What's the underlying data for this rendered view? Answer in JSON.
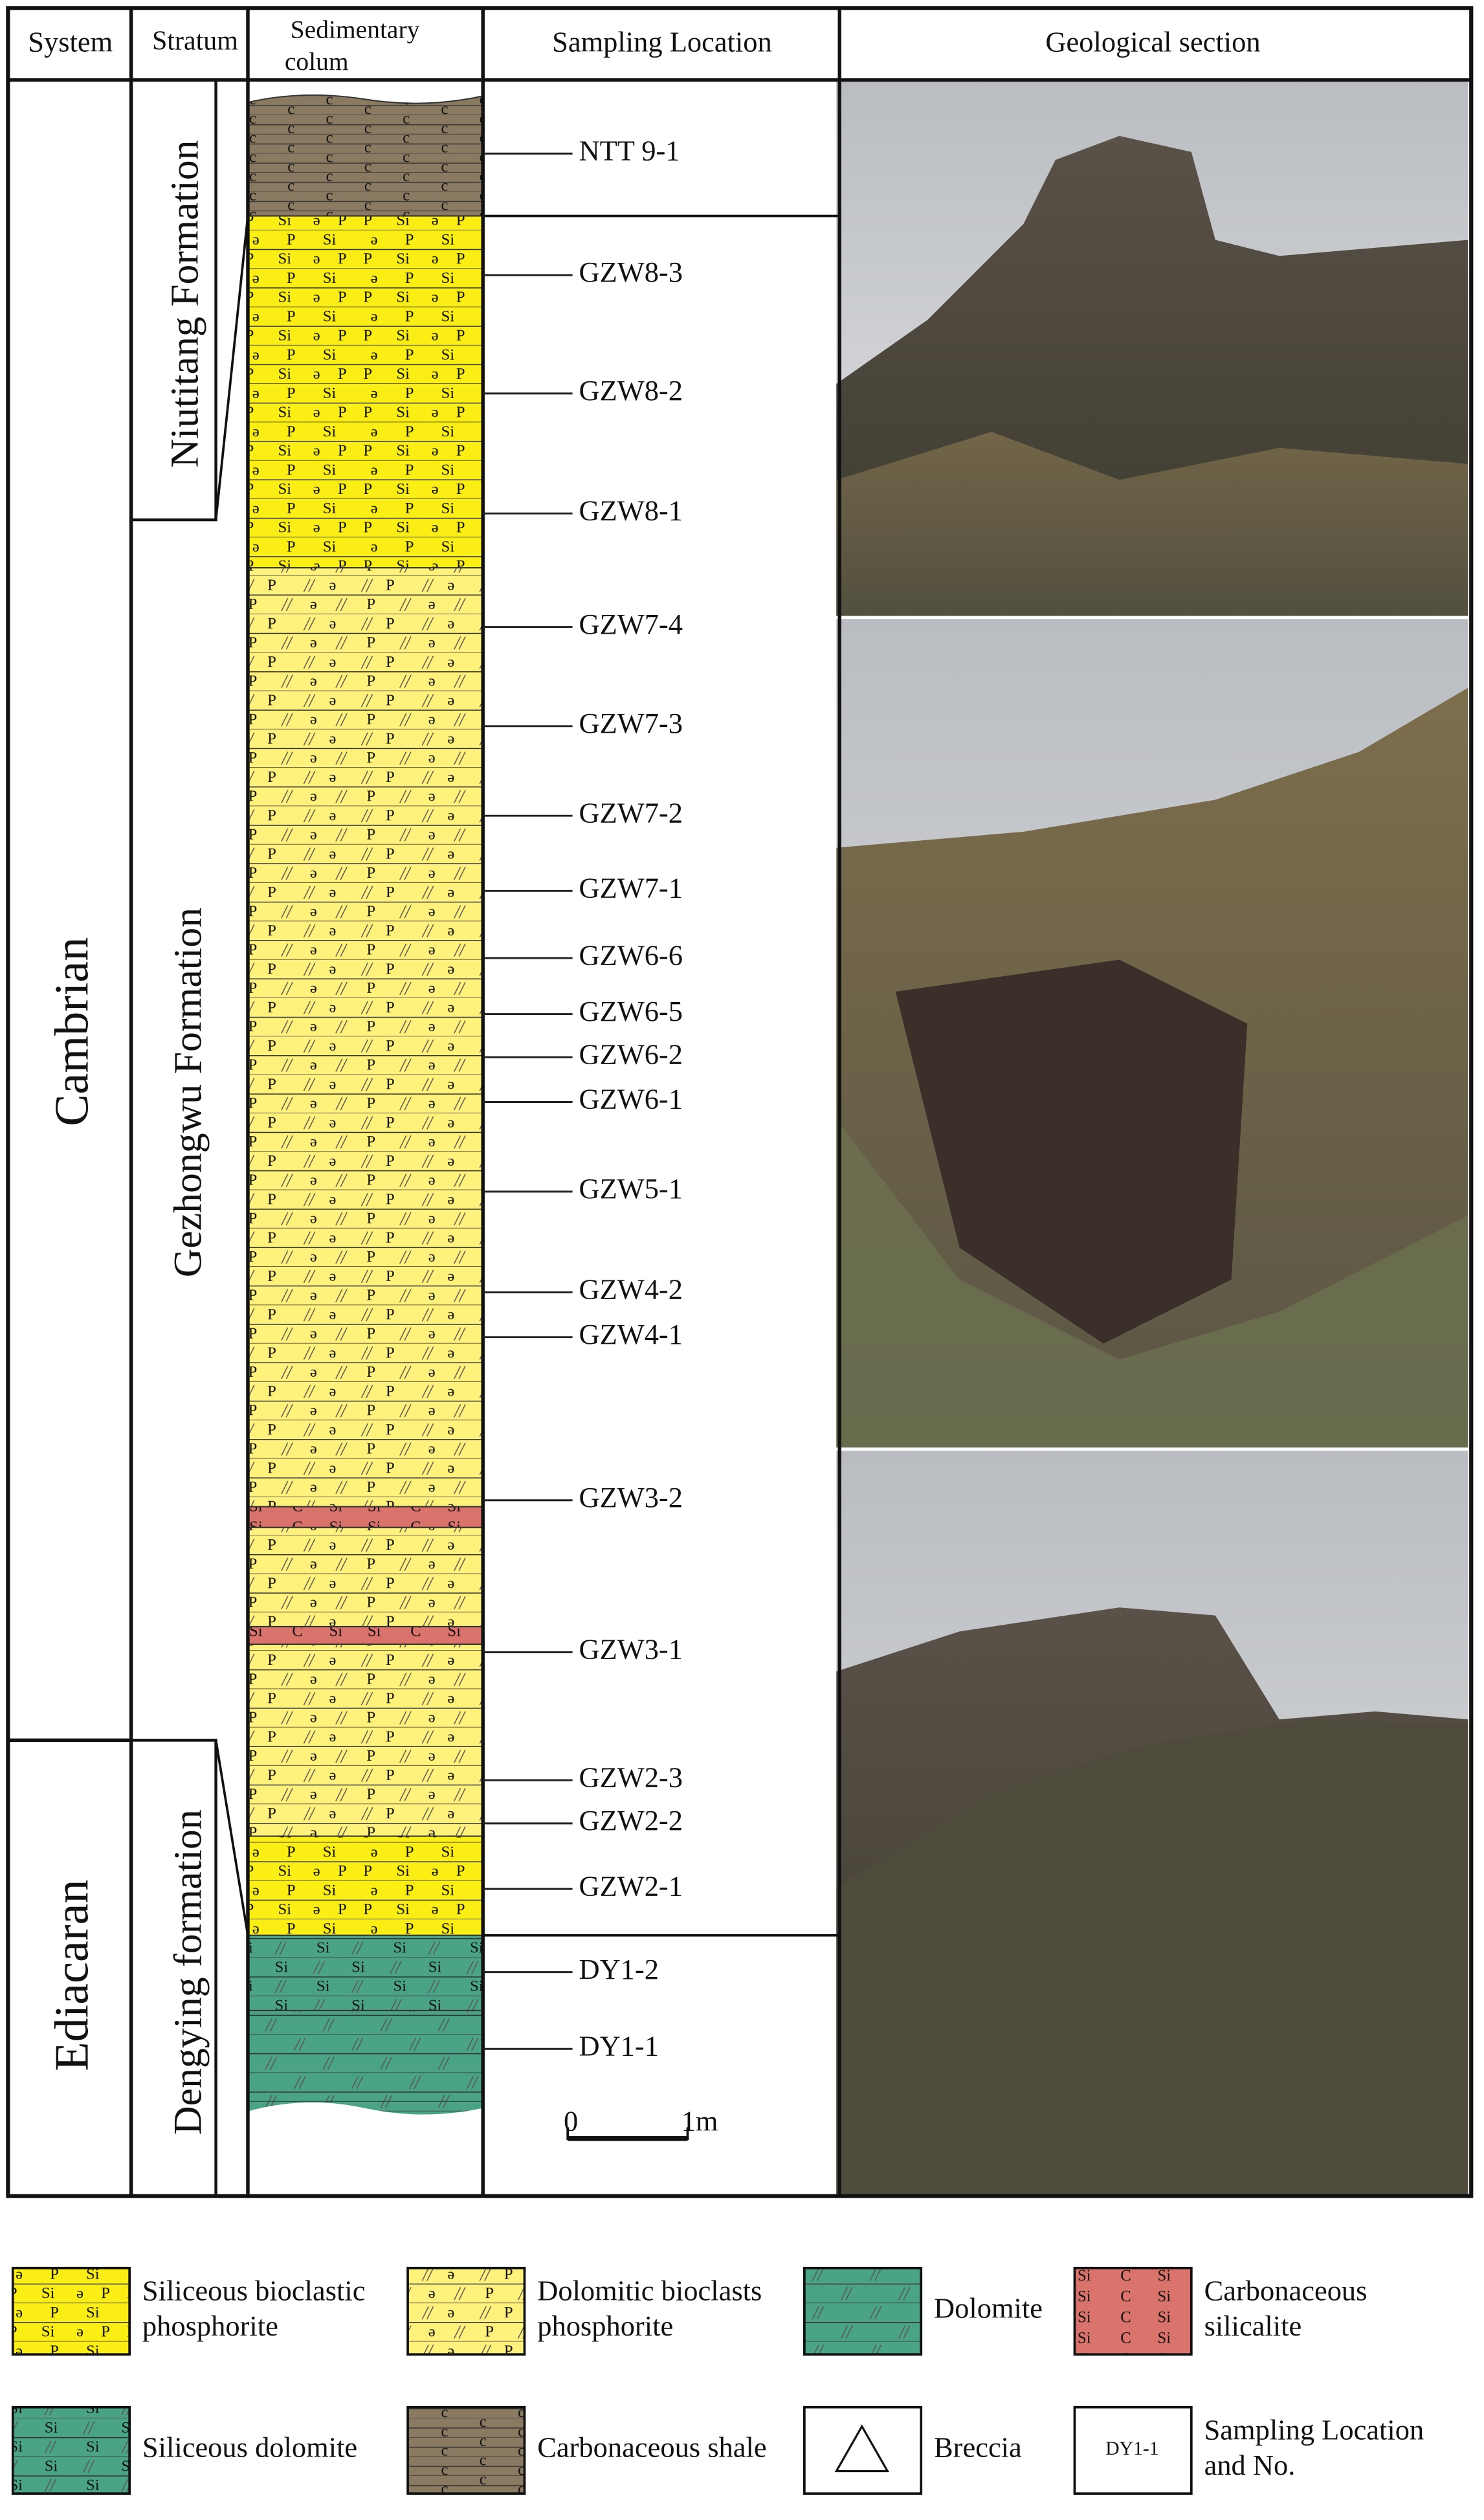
{
  "header": {
    "system": "System",
    "stratum": "Stratum",
    "column": [
      "Sedimentary",
      "colum"
    ],
    "sampling": "Sampling Location",
    "section": "Geological section"
  },
  "systems": [
    "Cambrian",
    "Ediacaran"
  ],
  "formations": [
    "Niutitang Formation",
    "Gezhongwu  Formation",
    "Dengying formation"
  ],
  "samples": [
    "NTT 9-1",
    "GZW8-3",
    "GZW8-2",
    "GZW8-1",
    "GZW7-4",
    "GZW7-3",
    "GZW7-2",
    "GZW7-1",
    "GZW6-6",
    "GZW6-5",
    "GZW6-2",
    "GZW6-1",
    "GZW5-1",
    "GZW4-2",
    "GZW4-1",
    "GZW3-2",
    "GZW3-1",
    "GZW2-3",
    "GZW2-2",
    "GZW2-1",
    "DY1-2",
    "DY1-1"
  ],
  "scale": {
    "start": "0",
    "end": "1m"
  },
  "symbols": {
    "phosphorus": "P",
    "silicon": "Si",
    "bioclast": "ə",
    "carbon": "C",
    "shale_carbon": "c"
  },
  "legend": [
    {
      "lines": [
        "Siliceous bioclastic",
        "phosphorite"
      ]
    },
    {
      "lines": [
        "Dolomitic bioclasts",
        "phosphorite"
      ]
    },
    {
      "lines": [
        "Dolomite"
      ]
    },
    {
      "lines": [
        "Carbonaceous",
        "silicalite"
      ]
    },
    {
      "lines": [
        "Siliceous dolomite"
      ]
    },
    {
      "lines": [
        "Carbonaceous shale"
      ]
    },
    {
      "lines": [
        "Breccia"
      ]
    },
    {
      "lines": [
        "Sampling Location",
        "and No."
      ],
      "swatch_text": "DY1-1"
    }
  ]
}
